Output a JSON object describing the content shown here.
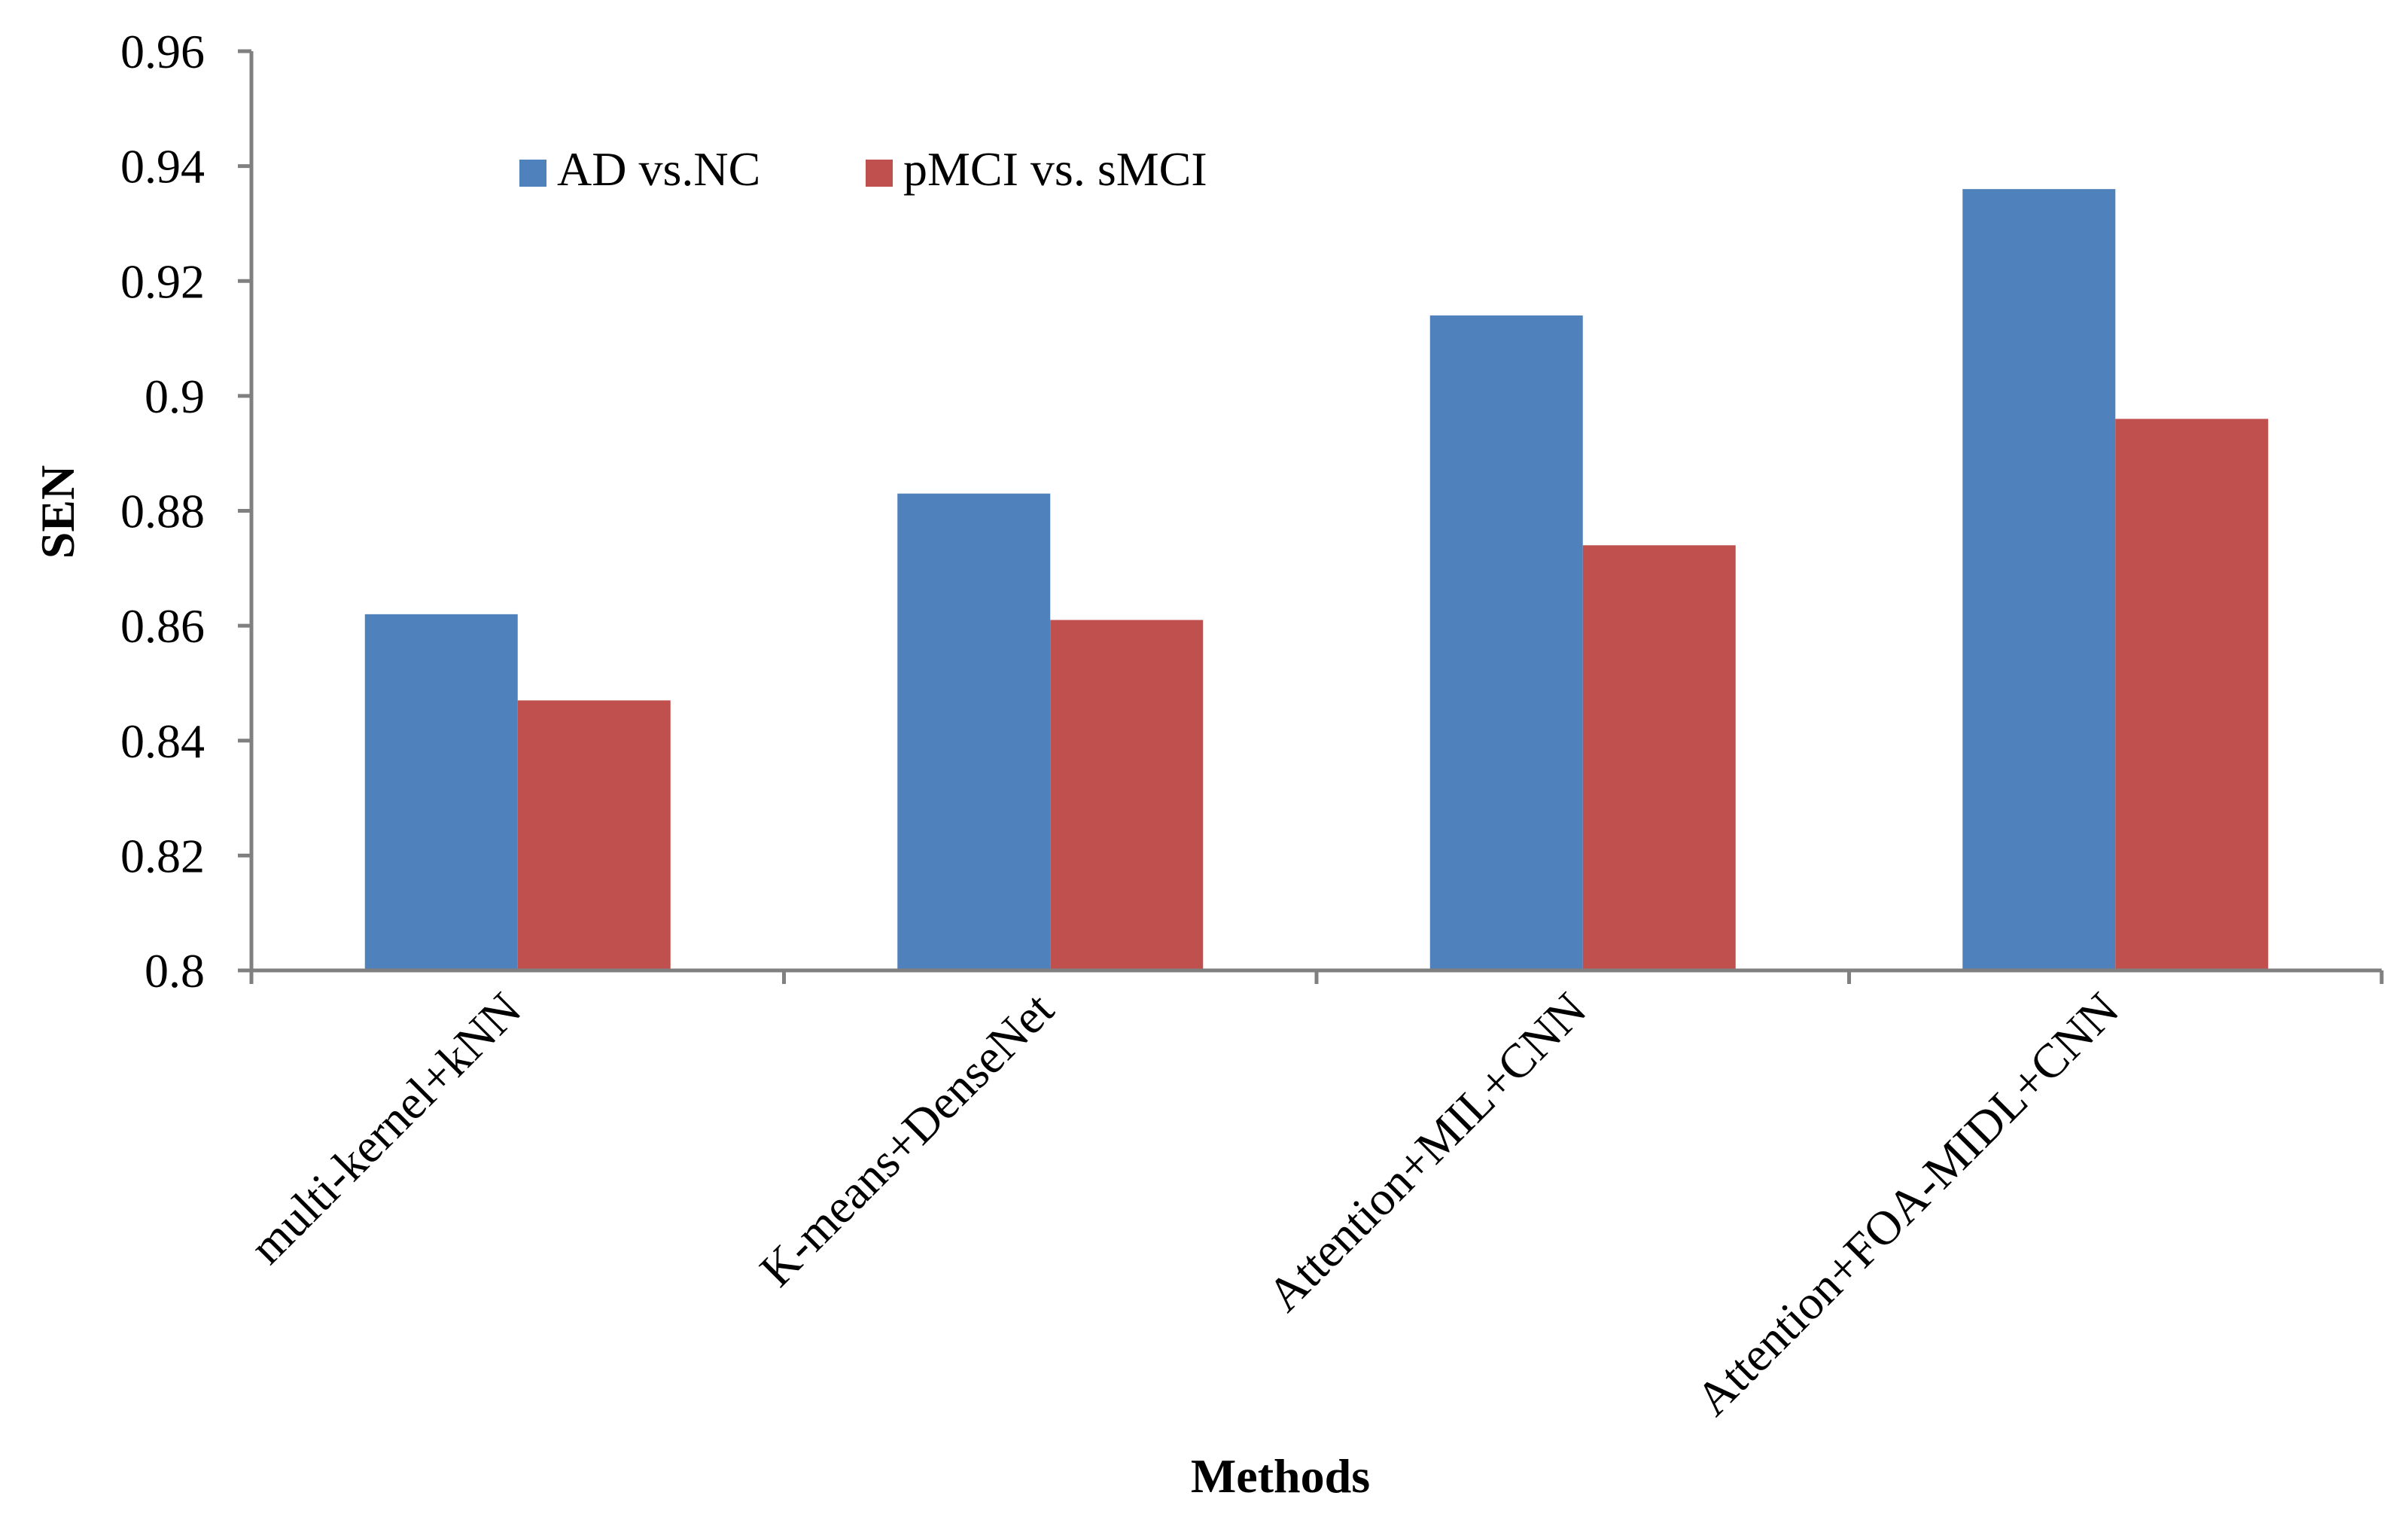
{
  "chart_data": {
    "type": "bar",
    "title": "",
    "xlabel": "Methods",
    "ylabel": "SEN",
    "ylim": [
      0.8,
      0.96
    ],
    "yticks": [
      0.8,
      0.82,
      0.84,
      0.86,
      0.88,
      0.9,
      0.92,
      0.94,
      0.96
    ],
    "ytick_labels": [
      "0.8",
      "0.82",
      "0.84",
      "0.86",
      "0.88",
      "0.9",
      "0.92",
      "0.94",
      "0.96"
    ],
    "grid": false,
    "legend_position": "top-left",
    "categories": [
      "multi-kernel+kNN",
      "K-means+DenseNet",
      "Attention+MIL+CNN",
      "Attention+FOA-MIDL+CNN"
    ],
    "series": [
      {
        "name": "AD vs.NC",
        "color": "#4F81BD",
        "values": [
          0.862,
          0.883,
          0.914,
          0.936
        ]
      },
      {
        "name": "pMCI vs. sMCI",
        "color": "#C0504D",
        "values": [
          0.847,
          0.861,
          0.874,
          0.896
        ]
      }
    ]
  }
}
